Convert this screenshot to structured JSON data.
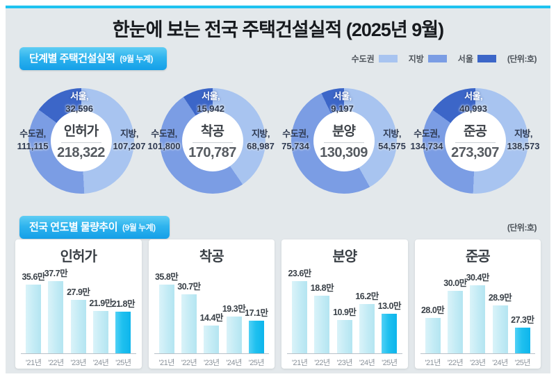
{
  "page_title": "한눈에 보는 전국 주택건설실적 (2025년 9월)",
  "colors": {
    "accent_cyan": "#1ec3f0",
    "panel_bg": "#e3e8eb",
    "donut_light": "#a8c4f0",
    "donut_medium": "#7b9de4",
    "donut_dark": "#3c66c8",
    "bar_normal": "#c3ebf5",
    "bar_highlight": "#1fc0ef"
  },
  "section_stage": {
    "badge_label": "단계별 주택건설실적",
    "badge_sub": "(9월 누계)",
    "unit_label": "(단위:호)",
    "legend": [
      {
        "label": "수도권",
        "color_key": "donut_light"
      },
      {
        "label": "지방",
        "color_key": "donut_medium"
      },
      {
        "label": "서울",
        "color_key": "donut_dark"
      }
    ]
  },
  "section_trend": {
    "badge_label": "전국 연도별 물량추이",
    "badge_sub": "(9월 누계)",
    "unit_label": "(단위:호)"
  },
  "chart_data": [
    {
      "type": "pie",
      "style": "donut-set",
      "title": "단계별 주택건설실적 (9월 누계)",
      "unit": "호",
      "legend": [
        "수도권",
        "지방",
        "서울"
      ],
      "region_labels": {
        "sudogwon": "수도권,",
        "jibang": "지방,",
        "seoul": "서울,"
      },
      "donuts": [
        {
          "name": "인허가",
          "total": 218322,
          "total_label": "218,322",
          "sudogwon": 111115,
          "sudogwon_label": "111,115",
          "jibang": 107207,
          "jibang_label": "107,207",
          "seoul": 32596,
          "seoul_label": "32,596"
        },
        {
          "name": "착공",
          "total": 170787,
          "total_label": "170,787",
          "sudogwon": 101800,
          "sudogwon_label": "101,800",
          "jibang": 68987,
          "jibang_label": "68,987",
          "seoul": 15942,
          "seoul_label": "15,942"
        },
        {
          "name": "분양",
          "total": 130309,
          "total_label": "130,309",
          "sudogwon": 75734,
          "sudogwon_label": "75,734",
          "jibang": 54575,
          "jibang_label": "54,575",
          "seoul": 9197,
          "seoul_label": "9,197"
        },
        {
          "name": "준공",
          "total": 273307,
          "total_label": "273,307",
          "sudogwon": 134734,
          "sudogwon_label": "134,734",
          "jibang": 138573,
          "jibang_label": "138,573",
          "seoul": 40993,
          "seoul_label": "40,993"
        }
      ]
    },
    {
      "type": "bar",
      "title": "전국 연도별 물량추이 (9월 누계)",
      "unit": "만 호",
      "categories": [
        "'21년",
        "'22년",
        "'23년",
        "'24년",
        "'25년"
      ],
      "charts": [
        {
          "name": "인허가",
          "values": [
            35.6,
            37.7,
            27.9,
            21.9,
            21.8
          ],
          "labels": [
            "35.6만",
            "37.7만",
            "27.9만",
            "21.9만",
            "21.8만"
          ],
          "ylim": [
            0,
            39
          ]
        },
        {
          "name": "착공",
          "values": [
            35.8,
            30.7,
            14.4,
            19.3,
            17.1
          ],
          "labels": [
            "35.8만",
            "30.7만",
            "14.4만",
            "19.3만",
            "17.1만"
          ],
          "ylim": [
            0,
            39
          ]
        },
        {
          "name": "분양",
          "values": [
            23.6,
            18.8,
            10.9,
            16.2,
            13.0
          ],
          "labels": [
            "23.6만",
            "18.8만",
            "10.9만",
            "16.2만",
            "13.0만"
          ],
          "ylim": [
            0,
            24.5
          ]
        },
        {
          "name": "준공",
          "values": [
            28.0,
            30.0,
            30.4,
            28.9,
            27.3
          ],
          "labels": [
            "28.0만",
            "30.0만",
            "30.4만",
            "28.9만",
            "27.3만"
          ],
          "ylim": [
            25.4,
            30.9
          ]
        }
      ]
    }
  ]
}
